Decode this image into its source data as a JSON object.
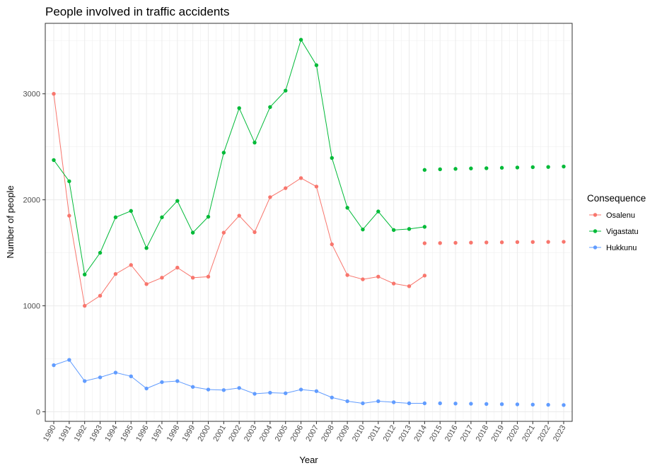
{
  "chart_data": {
    "type": "line",
    "title": "People involved in traffic accidents",
    "xlabel": "Year",
    "ylabel": "Number of people",
    "x": [
      1990,
      1991,
      1992,
      1993,
      1994,
      1995,
      1996,
      1997,
      1998,
      1999,
      2000,
      2001,
      2002,
      2003,
      2004,
      2005,
      2006,
      2007,
      2008,
      2009,
      2010,
      2011,
      2012,
      2013,
      2014,
      2015,
      2016,
      2017,
      2018,
      2019,
      2020,
      2021,
      2022,
      2023
    ],
    "xlim": [
      1989.45,
      2023.55
    ],
    "ylim": [
      -90,
      3665
    ],
    "yticks": [
      0,
      1000,
      2000,
      3000
    ],
    "grid": true,
    "legend": {
      "title": "Consequence",
      "position": "right"
    },
    "series": [
      {
        "name": "Osalenu",
        "color": "#F8766D",
        "observed_x": [
          1990,
          1991,
          1992,
          1993,
          1994,
          1995,
          1996,
          1997,
          1998,
          1999,
          2000,
          2001,
          2002,
          2003,
          2004,
          2005,
          2006,
          2007,
          2008,
          2009,
          2010,
          2011,
          2012,
          2013,
          2014
        ],
        "observed_y": [
          3000,
          1850,
          1000,
          1095,
          1300,
          1385,
          1205,
          1265,
          1360,
          1265,
          1275,
          1690,
          1850,
          1695,
          2025,
          2110,
          2205,
          2125,
          1580,
          1290,
          1250,
          1275,
          1210,
          1185,
          1285
        ],
        "forecast_x": [
          2014,
          2015,
          2016,
          2017,
          2018,
          2019,
          2020,
          2021,
          2022,
          2023
        ],
        "forecast_y": [
          1590,
          1592,
          1594,
          1596,
          1598,
          1599,
          1601,
          1602,
          1603,
          1604
        ]
      },
      {
        "name": "Vigastatu",
        "color": "#00BA38",
        "observed_x": [
          1990,
          1991,
          1992,
          1993,
          1994,
          1995,
          1996,
          1997,
          1998,
          1999,
          2000,
          2001,
          2002,
          2003,
          2004,
          2005,
          2006,
          2007,
          2008,
          2009,
          2010,
          2011,
          2012,
          2013,
          2014
        ],
        "observed_y": [
          2375,
          2175,
          1295,
          1500,
          1835,
          1895,
          1545,
          1835,
          1990,
          1690,
          1840,
          2445,
          2865,
          2540,
          2875,
          3030,
          3510,
          3270,
          2395,
          1925,
          1720,
          1890,
          1715,
          1725,
          1745
        ],
        "forecast_x": [
          2014,
          2015,
          2016,
          2017,
          2018,
          2019,
          2020,
          2021,
          2022,
          2023
        ],
        "forecast_y": [
          2282,
          2288,
          2292,
          2296,
          2298,
          2302,
          2305,
          2308,
          2310,
          2314
        ]
      },
      {
        "name": "Hukkunu",
        "color": "#619CFF",
        "observed_x": [
          1990,
          1991,
          1992,
          1993,
          1994,
          1995,
          1996,
          1997,
          1998,
          1999,
          2000,
          2001,
          2002,
          2003,
          2004,
          2005,
          2006,
          2007,
          2008,
          2009,
          2010,
          2011,
          2012,
          2013,
          2014
        ],
        "observed_y": [
          440,
          490,
          290,
          325,
          370,
          335,
          220,
          280,
          290,
          235,
          210,
          205,
          225,
          170,
          180,
          175,
          210,
          195,
          135,
          100,
          80,
          100,
          90,
          80,
          80
        ],
        "forecast_x": [
          2015,
          2016,
          2017,
          2018,
          2019,
          2020,
          2021,
          2022,
          2023
        ],
        "forecast_y": [
          80,
          78,
          76,
          74,
          72,
          70,
          68,
          66,
          64
        ]
      }
    ]
  }
}
